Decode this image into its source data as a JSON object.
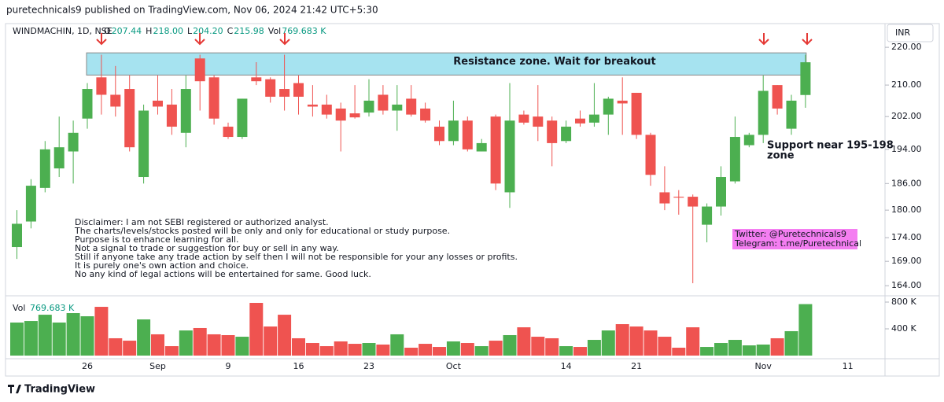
{
  "header": {
    "text": "puretechnicals9 published on TradingView.com, Nov 06, 2024 21:42 UTC+5:30"
  },
  "legend": {
    "symbol": "WINDMACHIN, 1D, NSE",
    "items": [
      {
        "key": "O",
        "value": "207.44"
      },
      {
        "key": "H",
        "value": "218.00"
      },
      {
        "key": "L",
        "value": "204.20"
      },
      {
        "key": "C",
        "value": "215.98"
      },
      {
        "key": "Vol",
        "value": "769.683 K"
      }
    ]
  },
  "currency": "INR",
  "volume_legend": {
    "key": "Vol",
    "value": "769.683 K"
  },
  "support_text": [
    "Support near 195-198",
    "zone"
  ],
  "disclaimer": [
    "Disclaimer: I am not SEBI registered or authorized analyst.",
    "The charts/levels/stocks posted will be only and only for educational or study purpose.",
    "Purpose is to enhance learning for all.",
    "Not a signal to trade or suggestion for buy or sell in any way.",
    "Still if anyone take any trade action by self then I will not be responsible for your any losses or profits.",
    "It is purely one's own action and choice.",
    "No any kind of legal actions will be entertained for same. Good luck."
  ],
  "social": [
    "Twitter: @Puretechnicals9",
    "Telegram: t.me/Puretechnical"
  ],
  "footer": "TradingView",
  "chart_data": [
    {
      "type": "candlestick",
      "log_scale": true,
      "up_color": "#4caf50",
      "down_color": "#ef5350",
      "categories": [
        null,
        null,
        null,
        null,
        null,
        "26",
        null,
        null,
        null,
        null,
        "Sep",
        null,
        null,
        null,
        null,
        "9",
        null,
        null,
        null,
        null,
        "16",
        null,
        null,
        null,
        null,
        "23",
        null,
        null,
        null,
        null,
        null,
        "Oct",
        null,
        null,
        null,
        null,
        null,
        null,
        null,
        "14",
        null,
        null,
        null,
        null,
        "21",
        null,
        null,
        null,
        null,
        null,
        null,
        null,
        null,
        "Nov",
        null,
        null,
        null,
        null,
        null,
        "11"
      ],
      "open": [
        172,
        177.5,
        185,
        189.5,
        193.5,
        201.5,
        212,
        207.5,
        209,
        187.5,
        206,
        205,
        198,
        217,
        212,
        199.5,
        197,
        212,
        211.5,
        209,
        210.5,
        205,
        205,
        204,
        202.8,
        203,
        207.5,
        203.5,
        206.5,
        204,
        199.5,
        196,
        201,
        193.5,
        202,
        184,
        202.5,
        202,
        201,
        196,
        201.5,
        200.5,
        202.5,
        206,
        208,
        197.5,
        184,
        183,
        183,
        176.8,
        180.8,
        186.5,
        195,
        197.5,
        210,
        199,
        207.44,
        null,
        null,
        null
      ],
      "high": [
        180,
        187,
        196,
        202,
        201,
        210.5,
        218,
        215,
        212.5,
        205,
        212.5,
        209,
        212.5,
        218,
        212.5,
        200.5,
        206.5,
        216,
        212,
        218,
        212.5,
        210,
        207.5,
        205.5,
        210,
        211.5,
        210,
        210,
        210,
        205.5,
        201,
        206,
        202,
        196.5,
        202.5,
        210.5,
        203.5,
        210,
        202,
        201,
        203.5,
        210.5,
        207,
        212,
        208,
        198,
        190,
        184.5,
        183.5,
        181.5,
        190,
        202,
        198,
        212.5,
        210,
        207.5,
        218,
        null,
        null,
        null
      ],
      "low": [
        169.5,
        176,
        184,
        187.5,
        186,
        199,
        202.5,
        202,
        193.5,
        186,
        202.5,
        197.5,
        194.5,
        203.5,
        200,
        196.5,
        196.5,
        210,
        205.5,
        203.5,
        202.5,
        202,
        201.5,
        193.5,
        201.5,
        202,
        202.5,
        198.5,
        202,
        200.5,
        195,
        195,
        193.5,
        193.5,
        184.5,
        180.5,
        200,
        196,
        190,
        195.5,
        199.5,
        199.5,
        197.5,
        197.5,
        196.5,
        185.5,
        180,
        179,
        164.5,
        173,
        178.8,
        186,
        194.5,
        195.5,
        202.5,
        197.5,
        204.2,
        null,
        null,
        null
      ],
      "close": [
        177,
        185.5,
        194,
        194.5,
        198,
        209,
        207.5,
        204.5,
        194.5,
        203.5,
        204.5,
        199.5,
        209,
        211,
        201.5,
        197,
        206.5,
        211,
        207,
        207,
        207,
        204.5,
        202.5,
        201,
        201.8,
        206,
        203.5,
        205,
        202.5,
        201,
        196,
        201,
        194,
        195.5,
        186,
        201,
        200.5,
        199.5,
        195.5,
        199.5,
        200.3,
        202.5,
        206.5,
        205.3,
        197.5,
        188,
        181.5,
        182.8,
        180.8,
        180.8,
        187.5,
        197,
        197.5,
        208.5,
        204,
        206,
        215.98,
        null,
        null,
        null
      ],
      "ylim": [
        162.6,
        222.6
      ],
      "yticks": [
        {
          "value": 220,
          "label": "220.00"
        },
        {
          "value": 210,
          "label": "210.00"
        },
        {
          "value": 202,
          "label": "202.00"
        },
        {
          "value": 194,
          "label": "194.00"
        },
        {
          "value": 186,
          "label": "186.00"
        },
        {
          "value": 180,
          "label": "180.00"
        },
        {
          "value": 174,
          "label": "174.00"
        },
        {
          "value": 169,
          "label": "169.00"
        },
        {
          "value": 164,
          "label": "164.00"
        }
      ],
      "zone": {
        "label": "Resistance zone. Wait for breakout",
        "range": [
          212.6,
          218.5
        ],
        "color": "#a6e3f0"
      }
    },
    {
      "type": "bar",
      "up_color": "#4caf50",
      "down_color": "#ef5350",
      "values": [
        494000,
        517000,
        611000,
        494000,
        635000,
        588000,
        729000,
        259000,
        223000,
        541000,
        318000,
        141000,
        376000,
        412000,
        318000,
        306000,
        282000,
        788000,
        435000,
        611000,
        259000,
        188000,
        141000,
        212000,
        176000,
        188000,
        165000,
        318000,
        118000,
        176000,
        129000,
        212000,
        188000,
        141000,
        223000,
        306000,
        423000,
        282000,
        259000,
        141000,
        129000,
        235000,
        376000,
        470000,
        435000,
        376000,
        282000,
        118000,
        423000,
        129000,
        188000,
        235000,
        153000,
        165000,
        259000,
        365000,
        769683,
        null,
        null,
        null
      ],
      "ylim": [
        0,
        847000
      ],
      "yticks": [
        {
          "value": 400000,
          "label": "400 K"
        },
        {
          "value": 800000,
          "label": "800 K"
        }
      ]
    }
  ]
}
